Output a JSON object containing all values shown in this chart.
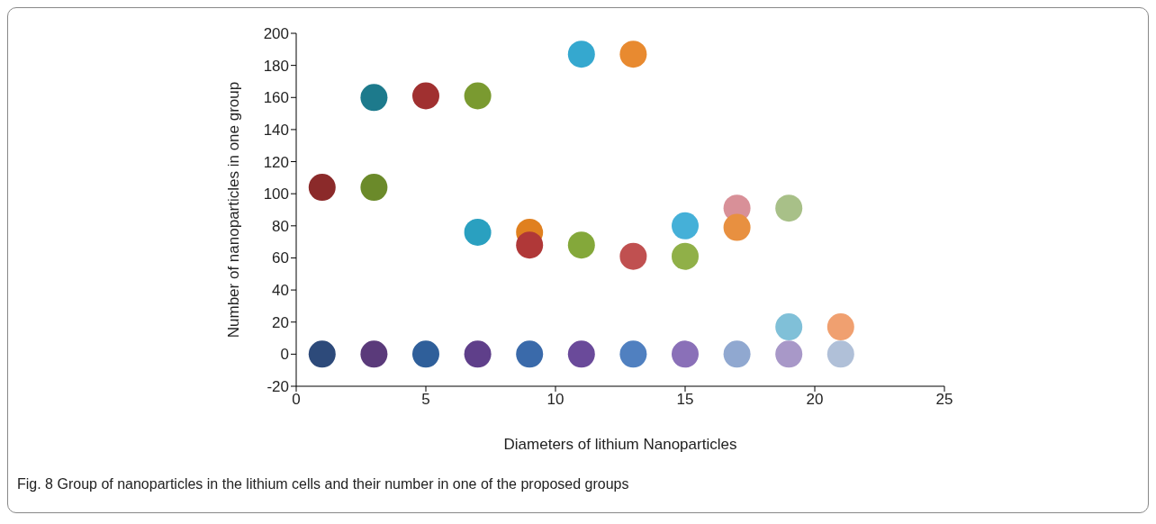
{
  "chart_data": {
    "type": "scatter",
    "xlabel": "Diameters of  lithium Nanoparticles",
    "ylabel": "Number of nanoparticles in one group",
    "x": [
      1,
      1,
      3,
      3,
      3,
      5,
      5,
      7,
      7,
      7,
      9,
      9,
      9,
      11,
      11,
      11,
      13,
      13,
      13,
      15,
      15,
      15,
      17,
      17,
      17,
      19,
      19,
      19,
      21,
      21
    ],
    "values": [
      104,
      0,
      160,
      104,
      0,
      161,
      0,
      161,
      76,
      0,
      76,
      68,
      0,
      187,
      68,
      0,
      187,
      61,
      0,
      80,
      61,
      0,
      91,
      79,
      0,
      91,
      17,
      0,
      17,
      0
    ],
    "colors": [
      "#8b2a2a",
      "#2d4a7a",
      "#1d7a8c",
      "#6b8a2a",
      "#5a3a7a",
      "#a03030",
      "#2f5f9a",
      "#7a9a30",
      "#2aa0c0",
      "#5f3f8a",
      "#e0801f",
      "#b03838",
      "#3a6aaa",
      "#35a8cf",
      "#84a83a",
      "#6a4a9a",
      "#e88a30",
      "#c05050",
      "#5080c0",
      "#45b0d8",
      "#90b048",
      "#8a70b8",
      "#d89098",
      "#e89040",
      "#90a8d0",
      "#a8c088",
      "#80c0d8",
      "#a898c8",
      "#f0a070",
      "#b0c0d8"
    ],
    "marker": "circle",
    "xlim": [
      0,
      25
    ],
    "xticks": [
      0,
      5,
      10,
      15,
      20,
      25
    ],
    "ylim": [
      -20,
      200
    ],
    "yticks": [
      -20,
      0,
      20,
      40,
      60,
      80,
      100,
      120,
      140,
      160,
      180,
      200
    ],
    "annotations": [
      "Fig. 8 Group of nanoparticles in the lithium cells and their number in one of the proposed groups"
    ]
  }
}
